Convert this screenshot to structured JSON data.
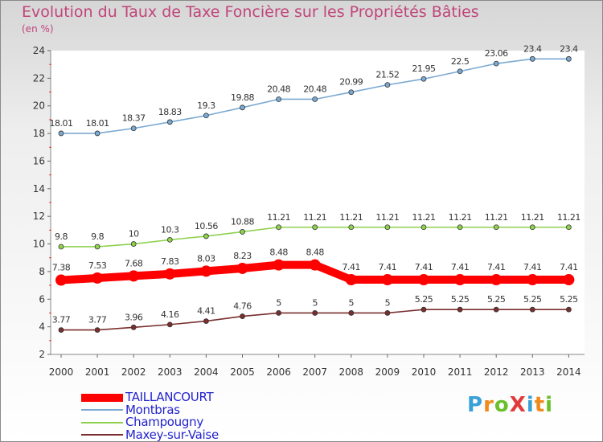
{
  "title": "Evolution du Taux de Taxe Foncière sur les Propriétés Bâties",
  "unit_label": "(en %)",
  "logo": {
    "text": "ProXiti",
    "colors": [
      "#3aa0d8",
      "#f08a1c",
      "#6bbf2a",
      "#e03a3a",
      "#3aa0d8",
      "#f08a1c",
      "#6bbf2a"
    ]
  },
  "chart_data": {
    "type": "line",
    "title": "Evolution du Taux de Taxe Foncière sur les Propriétés Bâties",
    "ylabel": "(en %)",
    "xlabel": "",
    "ylim": [
      2,
      24
    ],
    "yticks": [
      2,
      4,
      6,
      8,
      10,
      12,
      14,
      16,
      18,
      20,
      22,
      24
    ],
    "grid": false,
    "legend_position": "bottom-left",
    "x": [
      "2000",
      "2001",
      "2002",
      "2003",
      "2004",
      "2005",
      "2006",
      "2007",
      "2008",
      "2009",
      "2010",
      "2011",
      "2012",
      "2013",
      "2014"
    ],
    "series": [
      {
        "name": "TAILLANCOURT",
        "color": "#ff0000",
        "emphasis": true,
        "values": [
          7.38,
          7.53,
          7.68,
          7.83,
          8.03,
          8.23,
          8.48,
          8.48,
          7.41,
          7.41,
          7.41,
          7.41,
          7.41,
          7.41,
          7.41
        ],
        "labels": [
          "7.38",
          "7.53",
          "7.68",
          "7.83",
          "8.03",
          "8.23",
          "8.48",
          "8.48",
          "7.41",
          "7.41",
          "7.41",
          "7.41",
          "7.41",
          "7.41",
          "7.41"
        ]
      },
      {
        "name": "Montbras",
        "color": "#7aa9d2",
        "emphasis": false,
        "values": [
          18.01,
          18.01,
          18.37,
          18.83,
          19.3,
          19.88,
          20.48,
          20.48,
          20.99,
          21.52,
          21.95,
          22.5,
          23.06,
          23.4,
          23.4
        ],
        "labels": [
          "18.01",
          "18.01",
          "18.37",
          "18.83",
          "19.3",
          "19.88",
          "20.48",
          "20.48",
          "20.99",
          "21.52",
          "21.95",
          "22.5",
          "23.06",
          "23.4",
          "23.4"
        ]
      },
      {
        "name": "Champougny",
        "color": "#8fd14f",
        "emphasis": false,
        "values": [
          9.8,
          9.8,
          10,
          10.3,
          10.56,
          10.88,
          11.21,
          11.21,
          11.21,
          11.21,
          11.21,
          11.21,
          11.21,
          11.21,
          11.21
        ],
        "labels": [
          "9.8",
          "9.8",
          "10",
          "10.3",
          "10.56",
          "10.88",
          "11.21",
          "11.21",
          "11.21",
          "11.21",
          "11.21",
          "11.21",
          "11.21",
          "11.21",
          "11.21"
        ]
      },
      {
        "name": "Maxey-sur-Vaise",
        "color": "#7a2e2e",
        "emphasis": false,
        "values": [
          3.77,
          3.77,
          3.96,
          4.16,
          4.41,
          4.76,
          5,
          5,
          5,
          5,
          5.25,
          5.25,
          5.25,
          5.25,
          5.25
        ],
        "labels": [
          "3.77",
          "3.77",
          "3.96",
          "4.16",
          "4.41",
          "4.76",
          "5",
          "5",
          "5",
          "5",
          "5.25",
          "5.25",
          "5.25",
          "5.25",
          "5.25"
        ]
      }
    ]
  }
}
